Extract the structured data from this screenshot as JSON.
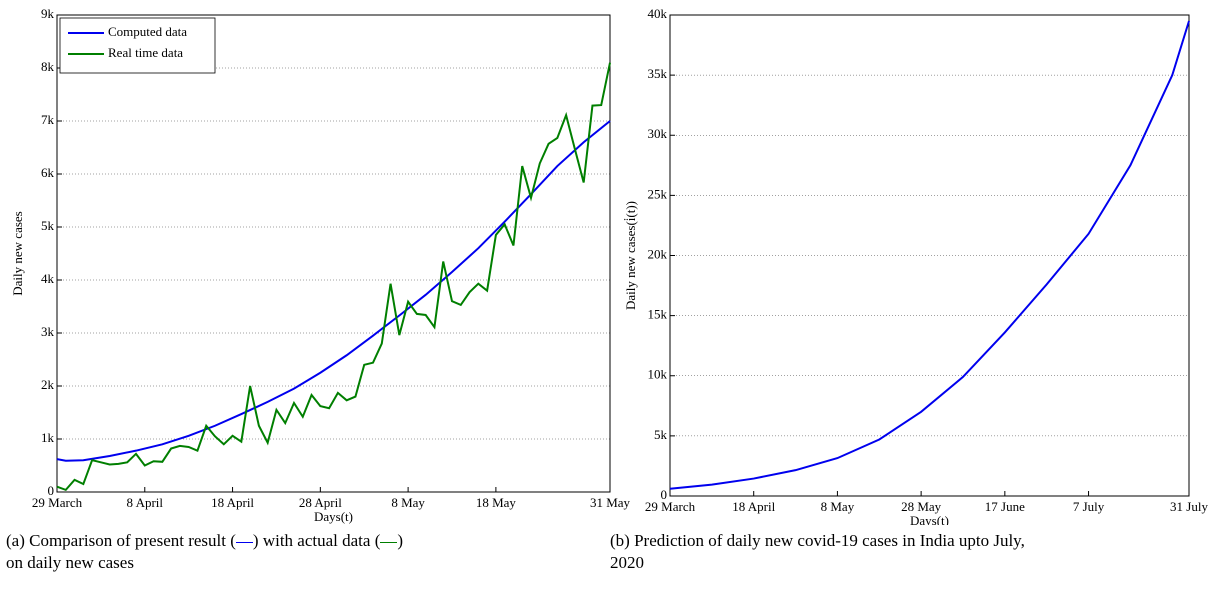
{
  "chart_data": [
    {
      "type": "line",
      "xlabel": "Days(t)",
      "ylabel": "Daily new cases",
      "xlim": [
        0,
        63
      ],
      "ylim": [
        0,
        9000
      ],
      "grid": true,
      "legend": "upper left",
      "xticks": [
        {
          "value": 0,
          "label": "29 March"
        },
        {
          "value": 10,
          "label": "8 April"
        },
        {
          "value": 20,
          "label": "18 April"
        },
        {
          "value": 30,
          "label": "28 April"
        },
        {
          "value": 40,
          "label": "8 May"
        },
        {
          "value": 50,
          "label": "18 May"
        },
        {
          "value": 63,
          "label": "31 May"
        }
      ],
      "yticks": [
        0,
        {
          "value": 1000,
          "label": "1k"
        },
        {
          "value": 2000,
          "label": "2k"
        },
        {
          "value": 3000,
          "label": "3k"
        },
        {
          "value": 4000,
          "label": "4k"
        },
        {
          "value": 5000,
          "label": "5k"
        },
        {
          "value": 6000,
          "label": "6k"
        },
        {
          "value": 7000,
          "label": "7k"
        },
        {
          "value": 8000,
          "label": "8k"
        },
        {
          "value": 9000,
          "label": "9k"
        }
      ],
      "series": [
        {
          "name": "Computed data",
          "color": "#0000ee",
          "x": [
            0,
            1,
            3,
            6,
            9,
            12,
            15,
            18,
            21,
            24,
            27,
            30,
            33,
            36,
            39,
            42,
            45,
            48,
            51,
            54,
            57,
            60,
            63
          ],
          "values": [
            620,
            590,
            600,
            680,
            780,
            900,
            1060,
            1250,
            1470,
            1700,
            1950,
            2250,
            2580,
            2950,
            3330,
            3720,
            4150,
            4600,
            5100,
            5620,
            6150,
            6600,
            7000
          ]
        },
        {
          "name": "Real time data",
          "color": "#007f00",
          "x": [
            0,
            1,
            2,
            3,
            4,
            5,
            6,
            7,
            8,
            9,
            10,
            11,
            12,
            13,
            14,
            15,
            16,
            17,
            18,
            19,
            20,
            21,
            22,
            23,
            24,
            25,
            26,
            27,
            28,
            29,
            30,
            31,
            32,
            33,
            34,
            35,
            36,
            37,
            38,
            39,
            40,
            41,
            42,
            43,
            44,
            45,
            46,
            47,
            48,
            49,
            50,
            51,
            52,
            53,
            54,
            55,
            56,
            57,
            58,
            59,
            60,
            61,
            62,
            63
          ],
          "values": [
            100,
            40,
            230,
            150,
            600,
            560,
            520,
            530,
            560,
            720,
            500,
            580,
            570,
            820,
            870,
            850,
            780,
            1250,
            1050,
            900,
            1060,
            950,
            2000,
            1250,
            930,
            1550,
            1300,
            1680,
            1420,
            1830,
            1620,
            1580,
            1870,
            1730,
            1800,
            2400,
            2440,
            2800,
            3930,
            2960,
            3590,
            3360,
            3340,
            3110,
            4350,
            3600,
            3530,
            3770,
            3930,
            3800,
            4850,
            5050,
            4650,
            6150,
            5550,
            6200,
            6570,
            6680,
            7110,
            6470,
            5840,
            7290,
            7300,
            8100
          ]
        }
      ],
      "caption": [
        "(a) Comparison of present result (",
        ") with actual data (",
        ")",
        "on daily new cases"
      ]
    },
    {
      "type": "line",
      "xlabel": "Days(t)",
      "ylabel": "Daily new cases(i̇(t))",
      "xlim": [
        0,
        124
      ],
      "ylim": [
        0,
        40000
      ],
      "grid": true,
      "xticks": [
        {
          "value": 0,
          "label": "29 March"
        },
        {
          "value": 20,
          "label": "18 April"
        },
        {
          "value": 40,
          "label": "8 May"
        },
        {
          "value": 60,
          "label": "28 May"
        },
        {
          "value": 80,
          "label": "17 June"
        },
        {
          "value": 100,
          "label": "7 July"
        },
        {
          "value": 124,
          "label": "31 July"
        }
      ],
      "yticks": [
        0,
        {
          "value": 5000,
          "label": "5k"
        },
        {
          "value": 10000,
          "label": "10k"
        },
        {
          "value": 15000,
          "label": "15k"
        },
        {
          "value": 20000,
          "label": "20k"
        },
        {
          "value": 25000,
          "label": "25k"
        },
        {
          "value": 30000,
          "label": "30k"
        },
        {
          "value": 35000,
          "label": "35k"
        },
        {
          "value": 40000,
          "label": "40k"
        }
      ],
      "series": [
        {
          "color": "#0000ee",
          "x": [
            0,
            10,
            20,
            30,
            40,
            50,
            60,
            70,
            80,
            90,
            100,
            110,
            120,
            124
          ],
          "values": [
            600,
            950,
            1450,
            2150,
            3150,
            4700,
            7000,
            9900,
            13600,
            17600,
            21800,
            27500,
            35000,
            39500
          ]
        }
      ],
      "caption": [
        "(b) Prediction of daily new covid-19 cases in India upto July,",
        "2020"
      ]
    }
  ]
}
